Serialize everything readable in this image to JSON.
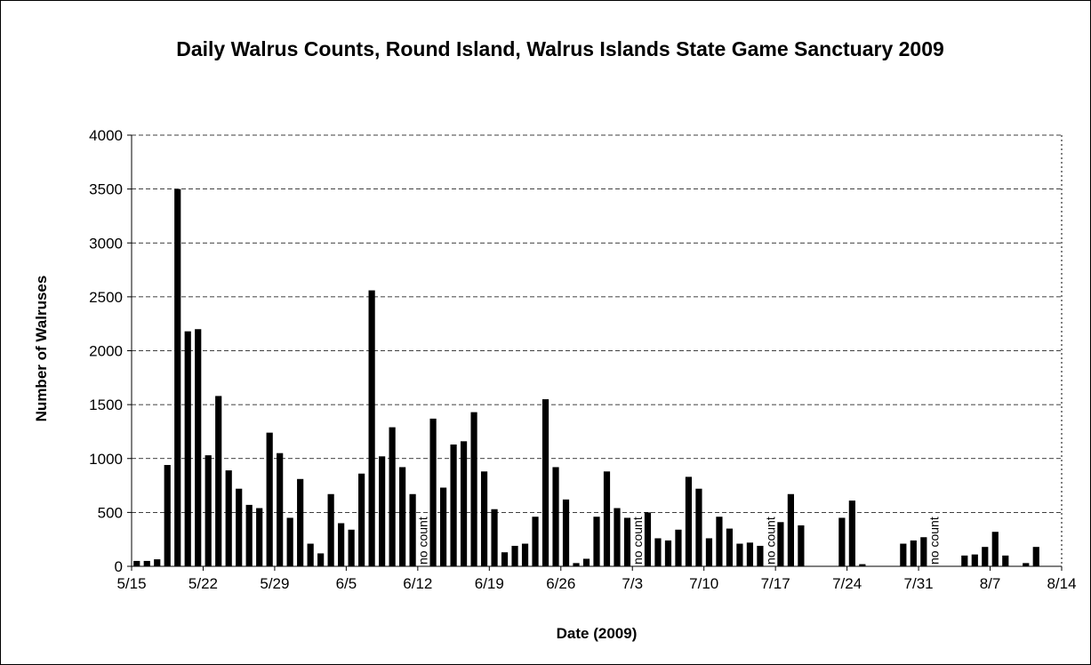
{
  "chart_data": {
    "type": "bar",
    "title": "Daily Walrus Counts, Round Island, Walrus Islands State Game Sanctuary 2009",
    "xlabel": "Date (2009)",
    "ylabel": "Number of Walruses",
    "categories": [
      "5/15",
      "5/16",
      "5/17",
      "5/18",
      "5/19",
      "5/20",
      "5/21",
      "5/22",
      "5/23",
      "5/24",
      "5/25",
      "5/26",
      "5/27",
      "5/28",
      "5/29",
      "5/30",
      "5/31",
      "6/1",
      "6/2",
      "6/3",
      "6/4",
      "6/5",
      "6/6",
      "6/7",
      "6/8",
      "6/9",
      "6/10",
      "6/11",
      "6/12",
      "6/13",
      "6/14",
      "6/15",
      "6/16",
      "6/17",
      "6/18",
      "6/19",
      "6/20",
      "6/21",
      "6/22",
      "6/23",
      "6/24",
      "6/25",
      "6/26",
      "6/27",
      "6/28",
      "6/29",
      "6/30",
      "7/1",
      "7/2",
      "7/3",
      "7/4",
      "7/5",
      "7/6",
      "7/7",
      "7/8",
      "7/9",
      "7/10",
      "7/11",
      "7/12",
      "7/13",
      "7/14",
      "7/15",
      "7/16",
      "7/17",
      "7/18",
      "7/19",
      "7/20",
      "7/21",
      "7/22",
      "7/23",
      "7/24",
      "7/25",
      "7/26",
      "7/27",
      "7/28",
      "7/29",
      "7/30",
      "7/31",
      "8/1",
      "8/2",
      "8/3",
      "8/4",
      "8/5",
      "8/6",
      "8/7",
      "8/8",
      "8/9",
      "8/10",
      "8/11",
      "8/12",
      "8/13"
    ],
    "values": [
      50,
      50,
      65,
      940,
      3500,
      2180,
      2200,
      1030,
      1580,
      890,
      720,
      570,
      540,
      1240,
      1050,
      450,
      810,
      210,
      120,
      670,
      400,
      340,
      860,
      2560,
      1020,
      1290,
      920,
      670,
      null,
      1370,
      730,
      1130,
      1160,
      1430,
      880,
      530,
      130,
      190,
      210,
      460,
      1550,
      920,
      620,
      30,
      70,
      460,
      880,
      540,
      450,
      null,
      500,
      260,
      240,
      340,
      830,
      720,
      260,
      460,
      350,
      210,
      220,
      190,
      null,
      410,
      670,
      380,
      null,
      null,
      null,
      450,
      610,
      20,
      null,
      null,
      null,
      210,
      240,
      270,
      null,
      null,
      null,
      100,
      110,
      180,
      320,
      100,
      null,
      30,
      180,
      null,
      null
    ],
    "color": "#000000",
    "xticks": [
      "5/15",
      "5/22",
      "5/29",
      "6/5",
      "6/12",
      "6/19",
      "6/26",
      "7/3",
      "7/10",
      "7/17",
      "7/24",
      "7/31",
      "8/7",
      "8/14"
    ],
    "ylim": [
      0,
      4000
    ],
    "yticks": [
      0,
      500,
      1000,
      1500,
      2000,
      2500,
      3000,
      3500,
      4000
    ],
    "grid": true,
    "annotations": [
      {
        "category": "6/12",
        "text": "no count"
      },
      {
        "category": "7/3",
        "text": "no count"
      },
      {
        "category": "7/16",
        "text": "no count"
      },
      {
        "category": "8/1",
        "text": "no count"
      }
    ]
  }
}
